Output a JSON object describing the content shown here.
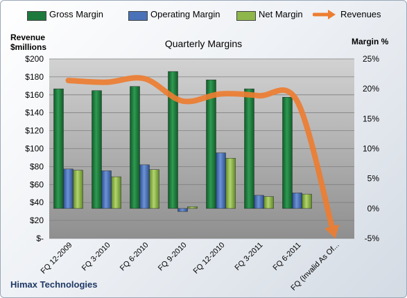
{
  "company": "Himax Technologies",
  "chart_data": {
    "type": "bar",
    "title": "Quarterly Margins",
    "ylabel_left": "Revenue $millions",
    "ylabel_right": "Margin %",
    "categories": [
      "FQ 12-2009",
      "FQ 3-2010",
      "FQ 6-2010",
      "FQ 9-2010",
      "FQ 12-2010",
      "FQ 3-2011",
      "FQ 6-2011",
      "FQ (Invalid As Of..."
    ],
    "left_axis": {
      "min": 0,
      "max": 200,
      "step": 20,
      "ticks": [
        "$-",
        "$20",
        "$40",
        "$60",
        "$80",
        "$100",
        "$120",
        "$140",
        "$160",
        "$180",
        "$200"
      ]
    },
    "right_axis": {
      "min": -5,
      "max": 25,
      "step": 5,
      "ticks": [
        "-5%",
        "0%",
        "5%",
        "10%",
        "15%",
        "20%",
        "25%"
      ]
    },
    "series": [
      {
        "name": "Gross Margin",
        "axis": "right",
        "color": "#1e7a3c",
        "values": [
          20.0,
          19.7,
          20.4,
          22.9,
          21.5,
          20.0,
          18.6,
          null
        ]
      },
      {
        "name": "Operating Margin",
        "axis": "right",
        "color": "#4a72b8",
        "values": [
          6.6,
          6.3,
          7.3,
          -0.5,
          9.3,
          2.2,
          2.6,
          null
        ]
      },
      {
        "name": "Net Margin",
        "axis": "right",
        "color": "#8fb64a",
        "values": [
          6.4,
          5.3,
          6.5,
          0.3,
          8.4,
          2.0,
          2.4,
          null
        ]
      },
      {
        "name": "Revenues",
        "axis": "left",
        "type": "line",
        "color": "#ed7d31",
        "values": [
          176,
          174,
          178,
          153,
          161,
          159,
          153,
          0
        ]
      }
    ],
    "grid": true,
    "legend": "top"
  }
}
